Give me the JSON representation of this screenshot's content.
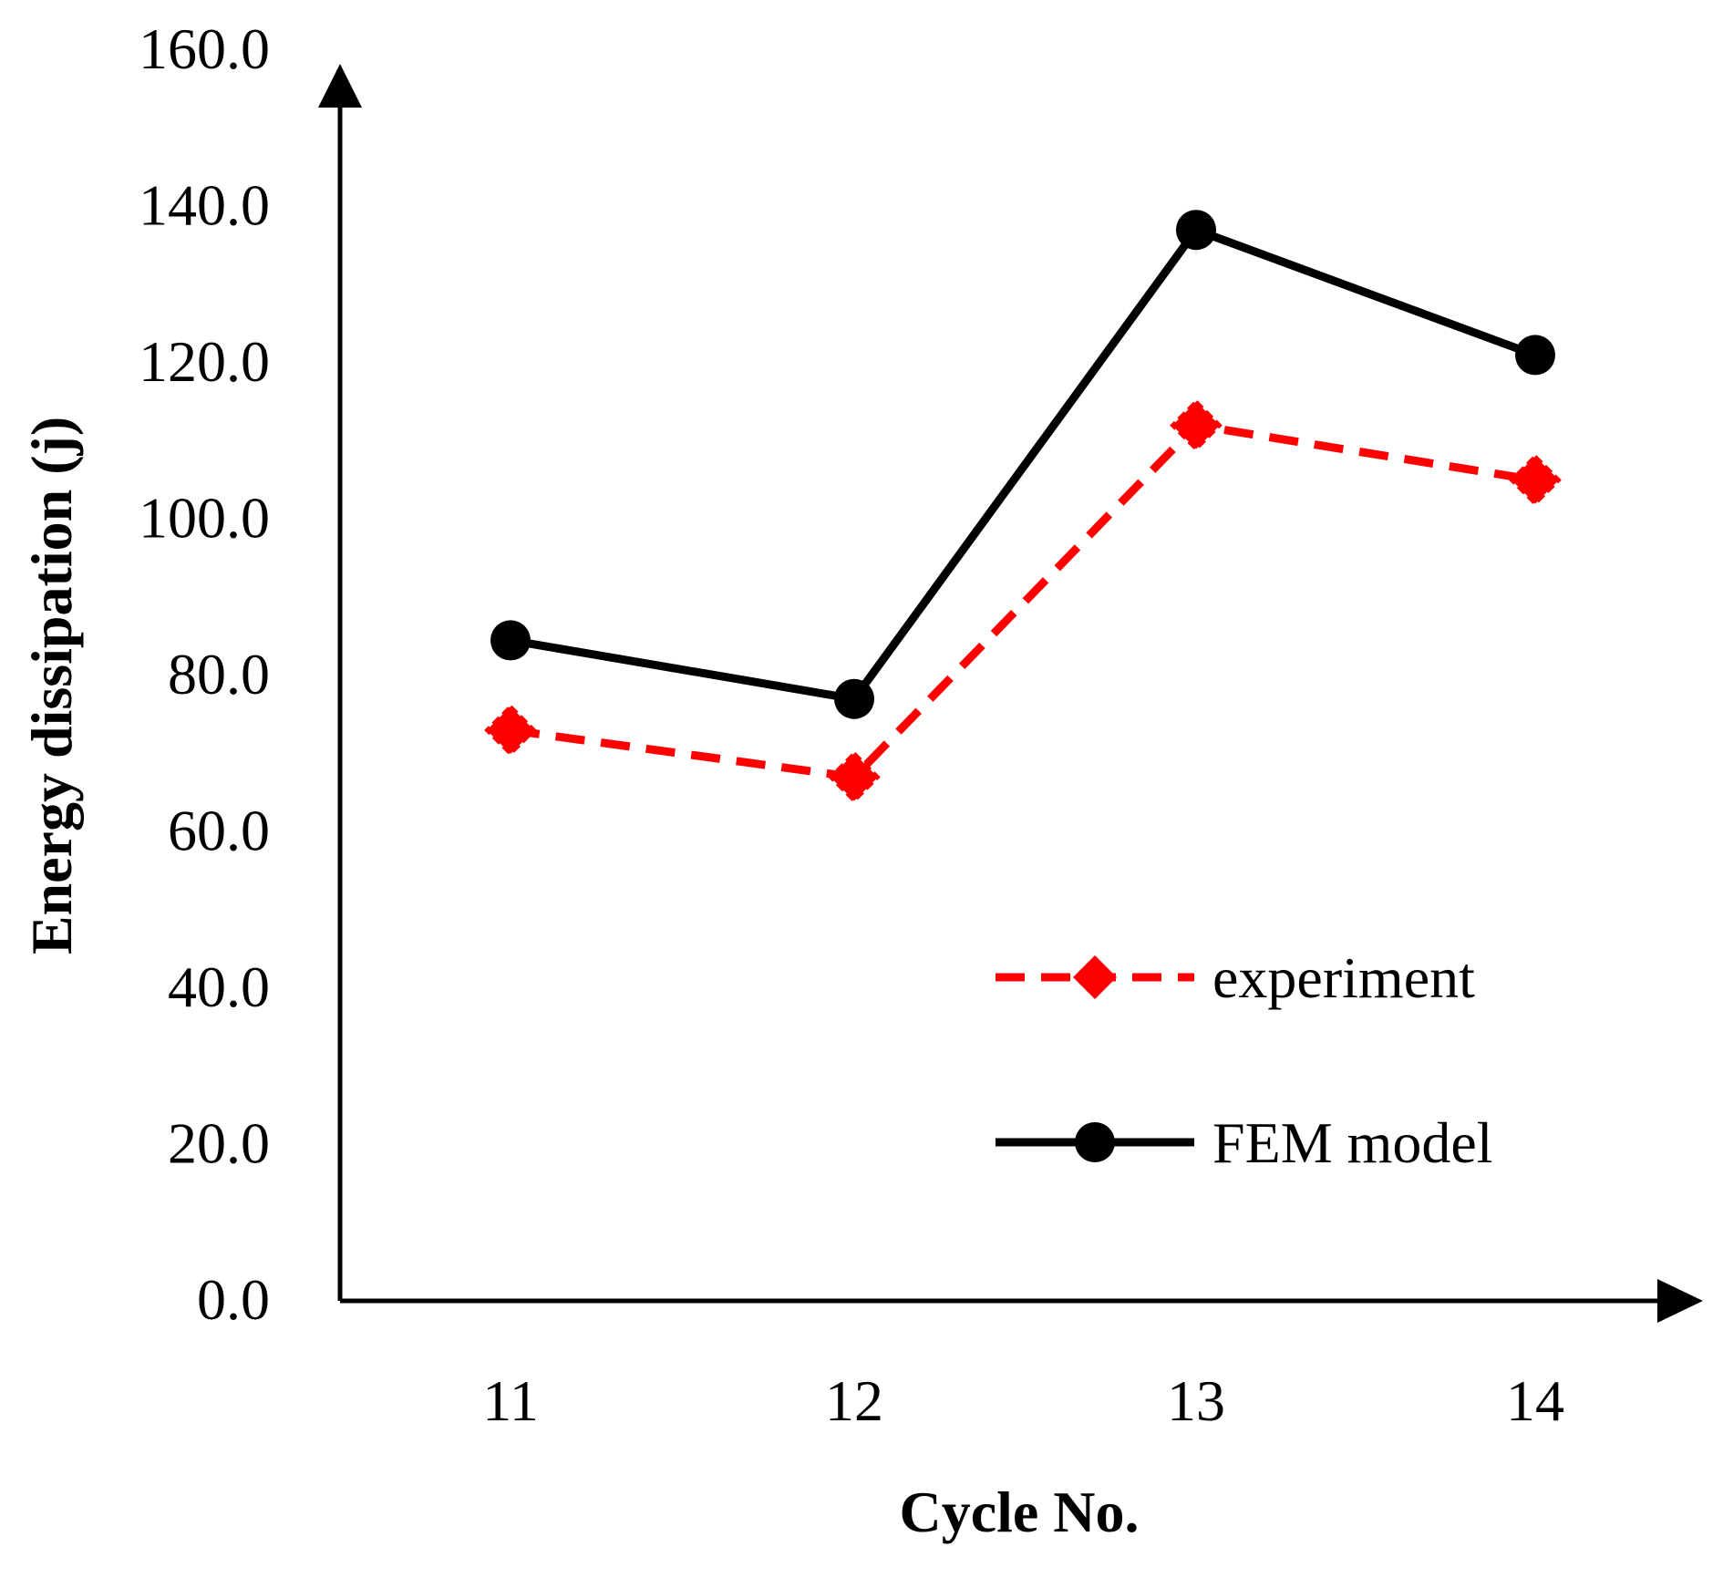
{
  "chart_data": {
    "type": "line",
    "title": "",
    "xlabel": "Cycle No.",
    "ylabel": "Energy dissipation (j)",
    "categories": [
      "11",
      "12",
      "13",
      "14"
    ],
    "ylim": [
      0,
      160
    ],
    "yticks": [
      "0.0",
      "20.0",
      "40.0",
      "60.0",
      "80.0",
      "100.0",
      "120.0",
      "140.0",
      "160.0"
    ],
    "ytick_values": [
      0,
      20,
      40,
      60,
      80,
      100,
      120,
      140,
      160
    ],
    "grid": false,
    "legend_position": "bottom-right",
    "series": [
      {
        "name": "experiment",
        "values": [
          73.0,
          67.0,
          112.0,
          105.0
        ],
        "color": "#ff0000",
        "style": "dashed",
        "marker": "diamond"
      },
      {
        "name": "FEM model",
        "values": [
          84.5,
          77.0,
          137.0,
          121.0
        ],
        "color": "#000000",
        "style": "solid",
        "marker": "circle"
      }
    ]
  }
}
